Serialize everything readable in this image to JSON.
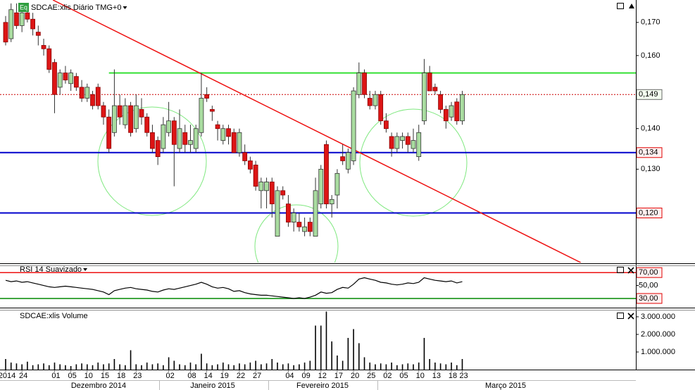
{
  "chart_data": {
    "type": "candlestick",
    "title": "SDCAE:xlis Diário TMG+0",
    "badge": "Eq",
    "log_scale": true,
    "ylim": [
      0.1096,
      0.1771
    ],
    "yticks": [
      {
        "value": 0.17,
        "label": "0,170"
      },
      {
        "value": 0.16,
        "label": "0,160"
      },
      {
        "value": 0.14,
        "label": "0,140"
      },
      {
        "value": 0.13,
        "label": "0,130"
      }
    ],
    "up_color": "#a9dca0",
    "down_color": "#dd1515",
    "categories": [
      "2014",
      null,
      null,
      "24",
      null,
      null,
      null,
      null,
      null,
      "01",
      null,
      null,
      "05",
      null,
      null,
      "10",
      null,
      null,
      "15",
      null,
      null,
      "18",
      null,
      null,
      "23",
      null,
      null,
      null,
      null,
      null,
      "02",
      null,
      null,
      null,
      "08",
      null,
      null,
      "14",
      null,
      null,
      "19",
      null,
      null,
      "22",
      null,
      null,
      "27",
      null,
      null,
      null,
      null,
      null,
      "04",
      null,
      null,
      "09",
      null,
      null,
      "12",
      null,
      null,
      "17",
      null,
      null,
      "20",
      null,
      null,
      "25",
      null,
      null,
      "02",
      null,
      null,
      "05",
      null,
      null,
      "10",
      null,
      null,
      "13",
      null,
      null,
      "18",
      null,
      "23"
    ],
    "months": [
      "Dezembro 2014",
      "Janeiro 2015",
      "Fevereiro 2015",
      "Março 2015"
    ],
    "ohlc": [
      [
        0.17,
        0.172,
        0.163,
        0.164
      ],
      [
        0.165,
        0.176,
        0.164,
        0.174
      ],
      [
        0.173,
        0.176,
        0.168,
        0.169
      ],
      [
        0.169,
        0.175,
        0.167,
        0.173
      ],
      [
        0.173,
        0.176,
        0.17,
        0.171
      ],
      [
        0.171,
        0.173,
        0.166,
        0.168
      ],
      [
        0.167,
        0.169,
        0.163,
        0.166
      ],
      [
        0.163,
        0.165,
        0.16,
        0.162
      ],
      [
        0.162,
        0.163,
        0.155,
        0.156
      ],
      [
        0.158,
        0.159,
        0.144,
        0.149
      ],
      [
        0.151,
        0.156,
        0.149,
        0.155
      ],
      [
        0.155,
        0.157,
        0.152,
        0.153
      ],
      [
        0.152,
        0.156,
        0.15,
        0.155
      ],
      [
        0.154,
        0.155,
        0.15,
        0.151
      ],
      [
        0.151,
        0.153,
        0.147,
        0.148
      ],
      [
        0.148,
        0.152,
        0.147,
        0.151
      ],
      [
        0.149,
        0.15,
        0.145,
        0.146
      ],
      [
        0.151,
        0.152,
        0.145,
        0.146
      ],
      [
        0.146,
        0.147,
        0.141,
        0.143
      ],
      [
        0.143,
        0.145,
        0.134,
        0.135
      ],
      [
        0.139,
        0.156,
        0.138,
        0.146
      ],
      [
        0.146,
        0.149,
        0.141,
        0.143
      ],
      [
        0.141,
        0.148,
        0.14,
        0.146
      ],
      [
        0.146,
        0.147,
        0.138,
        0.139
      ],
      [
        0.14,
        0.149,
        0.139,
        0.146
      ],
      [
        0.145,
        0.148,
        0.141,
        0.143
      ],
      [
        0.143,
        0.144,
        0.138,
        0.139
      ],
      [
        0.139,
        0.141,
        0.134,
        0.135
      ],
      [
        0.137,
        0.138,
        0.131,
        0.133
      ],
      [
        0.135,
        0.143,
        0.134,
        0.141
      ],
      [
        0.139,
        0.147,
        0.138,
        0.142
      ],
      [
        0.142,
        0.143,
        0.126,
        0.136
      ],
      [
        0.135,
        0.145,
        0.134,
        0.14
      ],
      [
        0.139,
        0.141,
        0.134,
        0.136
      ],
      [
        0.136,
        0.141,
        0.134,
        0.137
      ],
      [
        0.135,
        0.141,
        0.134,
        0.14
      ],
      [
        0.139,
        0.155,
        0.138,
        0.148
      ],
      [
        0.149,
        0.151,
        0.147,
        0.148
      ],
      [
        0.145,
        0.146,
        0.142,
        0.1445
      ],
      [
        0.141,
        0.142,
        0.137,
        0.14
      ],
      [
        0.137,
        0.141,
        0.136,
        0.14
      ],
      [
        0.14,
        0.141,
        0.136,
        0.138
      ],
      [
        0.139,
        0.14,
        0.134,
        0.134
      ],
      [
        0.134,
        0.14,
        0.133,
        0.139
      ],
      [
        0.134,
        0.136,
        0.131,
        0.132
      ],
      [
        0.132,
        0.133,
        0.129,
        0.13
      ],
      [
        0.131,
        0.132,
        0.125,
        0.126
      ],
      [
        0.125,
        0.128,
        0.121,
        0.127
      ],
      [
        0.125,
        0.128,
        0.121,
        0.127
      ],
      [
        0.127,
        0.128,
        0.119,
        0.122
      ],
      [
        0.115,
        0.126,
        0.115,
        0.125
      ],
      [
        0.125,
        0.126,
        0.123,
        0.124
      ],
      [
        0.122,
        0.124,
        0.117,
        0.118
      ],
      [
        0.118,
        0.121,
        0.116,
        0.12
      ],
      [
        0.118,
        0.12,
        0.116,
        0.117
      ],
      [
        0.116,
        0.119,
        0.115,
        0.117
      ],
      [
        0.118,
        0.119,
        0.115,
        0.116
      ],
      [
        0.115,
        0.128,
        0.115,
        0.125
      ],
      [
        0.122,
        0.131,
        0.121,
        0.13
      ],
      [
        0.136,
        0.137,
        0.121,
        0.122
      ],
      [
        0.122,
        0.124,
        0.119,
        0.123
      ],
      [
        0.124,
        0.13,
        0.121,
        0.129
      ],
      [
        0.133,
        0.136,
        0.131,
        0.132
      ],
      [
        0.13,
        0.135,
        0.129,
        0.134
      ],
      [
        0.132,
        0.151,
        0.131,
        0.15
      ],
      [
        0.149,
        0.158,
        0.148,
        0.155
      ],
      [
        0.155,
        0.156,
        0.148,
        0.149
      ],
      [
        0.148,
        0.15,
        0.145,
        0.146
      ],
      [
        0.146,
        0.15,
        0.145,
        0.149
      ],
      [
        0.149,
        0.15,
        0.141,
        0.142
      ],
      [
        0.142,
        0.144,
        0.139,
        0.14
      ],
      [
        0.138,
        0.139,
        0.133,
        0.135
      ],
      [
        0.135,
        0.139,
        0.134,
        0.138
      ],
      [
        0.137,
        0.139,
        0.135,
        0.138
      ],
      [
        0.138,
        0.139,
        0.134,
        0.136
      ],
      [
        0.135,
        0.14,
        0.134,
        0.137
      ],
      [
        0.133,
        0.141,
        0.132,
        0.139
      ],
      [
        0.142,
        0.159,
        0.141,
        0.155
      ],
      [
        0.155,
        0.157,
        0.15,
        0.15
      ],
      [
        0.151,
        0.152,
        0.149,
        0.15
      ],
      [
        0.149,
        0.15,
        0.144,
        0.145
      ],
      [
        0.145,
        0.146,
        0.14,
        0.142
      ],
      [
        0.143,
        0.147,
        0.142,
        0.146
      ],
      [
        0.147,
        0.148,
        0.141,
        0.142
      ],
      [
        0.142,
        0.15,
        0.141,
        0.149
      ]
    ],
    "last_price": {
      "value": 0.149,
      "label": "0,149",
      "color": "#cc0000"
    },
    "hlines": [
      {
        "value": 0.155,
        "color": "#33e033",
        "from": 19
      },
      {
        "value": 0.134,
        "color": "#0000cc",
        "label": "0,134"
      },
      {
        "value": 0.12,
        "color": "#0000cc",
        "label": "0,120"
      }
    ],
    "trendline": {
      "color": "#ee1111",
      "points": [
        [
          8.7,
          0.1771
        ],
        [
          105.8,
          0.1096
        ]
      ]
    },
    "rsi": {
      "title": "RSI 14 Suavizado",
      "ylim": [
        18,
        80
      ],
      "yticks": [
        {
          "value": 70,
          "label": "70,00"
        },
        {
          "value": 50,
          "label": "50,00"
        },
        {
          "value": 30,
          "label": "30,00"
        }
      ],
      "levels": [
        {
          "value": 70,
          "color": "#ee1111"
        },
        {
          "value": 30,
          "color": "#008800"
        }
      ],
      "values": [
        58,
        56,
        57,
        55,
        56,
        54,
        52,
        50,
        48,
        47,
        48,
        49,
        48,
        47,
        46,
        45,
        44,
        42,
        40,
        36,
        42,
        44,
        46,
        47,
        45,
        44,
        43,
        41,
        40,
        43,
        45,
        44,
        46,
        48,
        50,
        52,
        55,
        52,
        48,
        46,
        47,
        45,
        41,
        42,
        39,
        37,
        36,
        35,
        35,
        34,
        33,
        32,
        31,
        30,
        31,
        30,
        32,
        35,
        40,
        38,
        39,
        44,
        47,
        46,
        52,
        60,
        62,
        60,
        58,
        55,
        54,
        52,
        51,
        52,
        54,
        53,
        55,
        62,
        60,
        58,
        57,
        56,
        57,
        54,
        56
      ]
    },
    "volume": {
      "title": "SDCAE:xlis Volume",
      "ylim": [
        0,
        3360000
      ],
      "yticks": [
        {
          "value": 3000000,
          "label": "3.000.000"
        },
        {
          "value": 2000000,
          "label": "2.000.000"
        },
        {
          "value": 1000000,
          "label": "1.000.000"
        }
      ],
      "values": [
        600000,
        400000,
        350000,
        300000,
        450000,
        250000,
        300000,
        350000,
        250000,
        400000,
        300000,
        250000,
        200000,
        300000,
        350000,
        300000,
        250000,
        400000,
        300000,
        350000,
        600000,
        300000,
        250000,
        1100000,
        300000,
        250000,
        400000,
        300000,
        350000,
        250000,
        700000,
        500000,
        300000,
        250000,
        400000,
        300000,
        900000,
        350000,
        250000,
        300000,
        400000,
        300000,
        250000,
        350000,
        300000,
        400000,
        500000,
        300000,
        350000,
        600000,
        400000,
        300000,
        350000,
        250000,
        300000,
        400000,
        500000,
        2500000,
        2500000,
        3300000,
        1600000,
        800000,
        500000,
        1800000,
        2300000,
        1500000,
        700000,
        400000,
        300000,
        350000,
        300000,
        400000,
        250000,
        300000,
        350000,
        300000,
        400000,
        1800000,
        600000,
        400000,
        350000,
        300000,
        400000,
        250000,
        600000
      ]
    }
  }
}
